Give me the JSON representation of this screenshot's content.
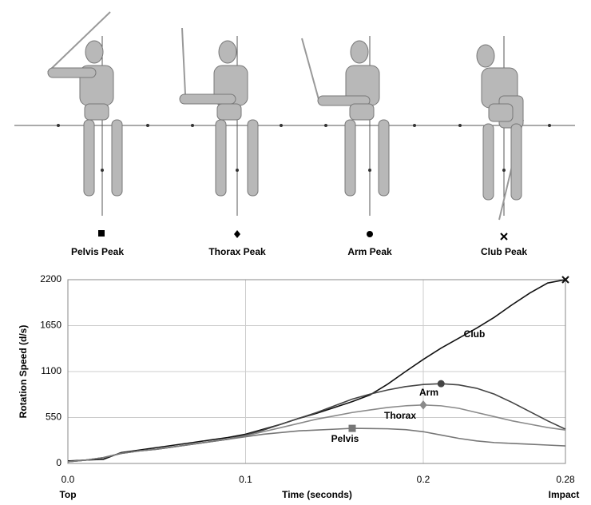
{
  "panels": [
    {
      "label": "Pelvis Peak"
    },
    {
      "label": "Thorax Peak"
    },
    {
      "label": "Arm Peak"
    },
    {
      "label": "Club Peak"
    }
  ],
  "chart_data": {
    "type": "line",
    "x_label": "Time (seconds)",
    "y_label": "Rotation Speed (d/s)",
    "x_end_labels": [
      "Top",
      "Impact"
    ],
    "x": [
      0,
      0.01,
      0.02,
      0.03,
      0.04,
      0.05,
      0.06,
      0.07,
      0.08,
      0.09,
      0.1,
      0.11,
      0.12,
      0.13,
      0.14,
      0.15,
      0.16,
      0.17,
      0.18,
      0.19,
      0.2,
      0.21,
      0.22,
      0.23,
      0.24,
      0.25,
      0.26,
      0.27,
      0.28
    ],
    "series": [
      {
        "name": "Club",
        "color": "#111111",
        "marker": "x",
        "values": [
          30,
          40,
          50,
          130,
          160,
          190,
          220,
          250,
          280,
          310,
          350,
          410,
          470,
          540,
          600,
          670,
          740,
          820,
          950,
          1100,
          1245,
          1380,
          1500,
          1620,
          1750,
          1900,
          2040,
          2160,
          2200
        ]
      },
      {
        "name": "Arm",
        "color": "#444444",
        "marker": "circle",
        "values": [
          20,
          40,
          70,
          120,
          150,
          170,
          200,
          230,
          260,
          290,
          340,
          400,
          470,
          540,
          610,
          690,
          770,
          830,
          880,
          920,
          945,
          955,
          940,
          900,
          830,
          730,
          620,
          510,
          410
        ]
      },
      {
        "name": "Thorax",
        "color": "#8a8a8a",
        "marker": "diamond",
        "values": [
          20,
          40,
          70,
          120,
          150,
          170,
          200,
          230,
          260,
          290,
          330,
          380,
          430,
          480,
          530,
          570,
          610,
          640,
          670,
          690,
          700,
          690,
          660,
          610,
          560,
          510,
          470,
          430,
          400
        ]
      },
      {
        "name": "Pelvis",
        "color": "#777777",
        "marker": "square",
        "values": [
          20,
          40,
          70,
          120,
          150,
          170,
          200,
          230,
          260,
          290,
          320,
          350,
          370,
          390,
          400,
          410,
          420,
          418,
          415,
          405,
          380,
          340,
          300,
          270,
          250,
          240,
          230,
          220,
          210
        ]
      }
    ],
    "xlim": [
      0,
      0.28
    ],
    "xticks": [
      {
        "value": 0,
        "label": "0.0"
      },
      0.1,
      0.2,
      0.28
    ],
    "ylim": [
      0,
      2200
    ],
    "yticks": [
      0,
      550,
      1100,
      1650,
      2200
    ],
    "grid": true
  }
}
